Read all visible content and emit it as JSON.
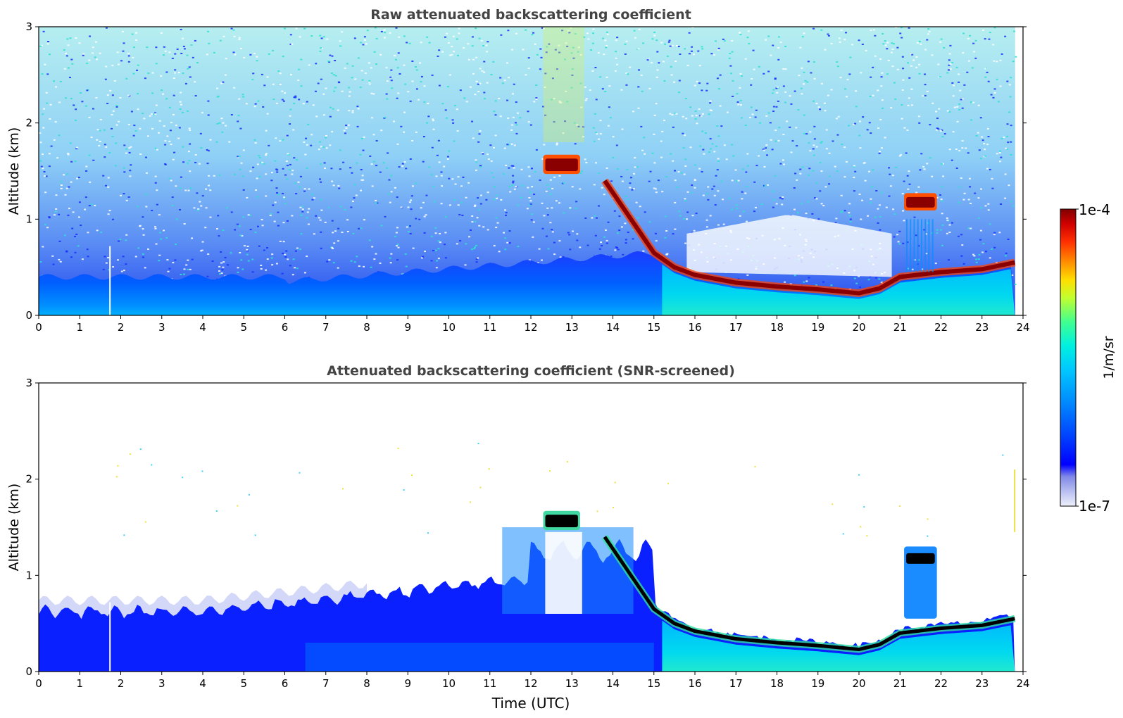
{
  "chart_data": [
    {
      "type": "heatmap",
      "title": "Raw attenuated backscattering coefficient",
      "xlabel": "",
      "ylabel": "Altitude (km)",
      "xlim": [
        0,
        24
      ],
      "ylim": [
        0,
        3
      ],
      "xticks": [
        "0",
        "1",
        "2",
        "3",
        "4",
        "5",
        "6",
        "7",
        "8",
        "9",
        "10",
        "11",
        "12",
        "13",
        "14",
        "15",
        "16",
        "17",
        "18",
        "19",
        "20",
        "21",
        "22",
        "23",
        "24"
      ],
      "yticks": [
        "0",
        "1",
        "2",
        "3"
      ],
      "grid": false,
      "features": {
        "boundary_layer_top_km": [
          [
            15.0,
            0.65
          ],
          [
            15.5,
            0.5
          ],
          [
            16.0,
            0.42
          ],
          [
            17.0,
            0.34
          ],
          [
            18.0,
            0.3
          ],
          [
            19.0,
            0.27
          ],
          [
            20.0,
            0.23
          ],
          [
            20.5,
            0.28
          ],
          [
            21.0,
            0.4
          ],
          [
            22.0,
            0.45
          ],
          [
            23.0,
            0.48
          ],
          [
            23.8,
            0.55
          ]
        ],
        "descending_layer_km": [
          [
            13.8,
            1.4
          ],
          [
            14.2,
            1.15
          ],
          [
            14.6,
            0.9
          ],
          [
            15.0,
            0.65
          ]
        ],
        "cloud_12_13h": {
          "t_start": 12.3,
          "t_end": 13.2,
          "alt_km": 1.55
        },
        "cloud_21_22h": {
          "t_start": 21.1,
          "t_end": 21.9,
          "alt_km": 1.15
        }
      }
    },
    {
      "type": "heatmap",
      "title": "Attenuated backscattering coefficient (SNR-screened)",
      "xlabel": "Time (UTC)",
      "ylabel": "Altitude (km)",
      "xlim": [
        0,
        24
      ],
      "ylim": [
        0,
        3
      ],
      "xticks": [
        "0",
        "1",
        "2",
        "3",
        "4",
        "5",
        "6",
        "7",
        "8",
        "9",
        "10",
        "11",
        "12",
        "13",
        "14",
        "15",
        "16",
        "17",
        "18",
        "19",
        "20",
        "21",
        "22",
        "23",
        "24"
      ],
      "yticks": [
        "0",
        "1",
        "2",
        "3"
      ],
      "grid": false
    }
  ],
  "colorbar": {
    "label": "1/m/sr",
    "max_label": "1e-4",
    "min_label": "1e-7",
    "scale": "log",
    "range": [
      1e-07,
      0.0001
    ],
    "colormap": [
      "#eef0fb",
      "#b8bff0",
      "#7f87e8",
      "#0000ff",
      "#0045ff",
      "#0090ff",
      "#00c8ff",
      "#00f0e0",
      "#40ff90",
      "#c0ff30",
      "#ffe000",
      "#ff9000",
      "#ff3000",
      "#d00000",
      "#800000"
    ]
  }
}
